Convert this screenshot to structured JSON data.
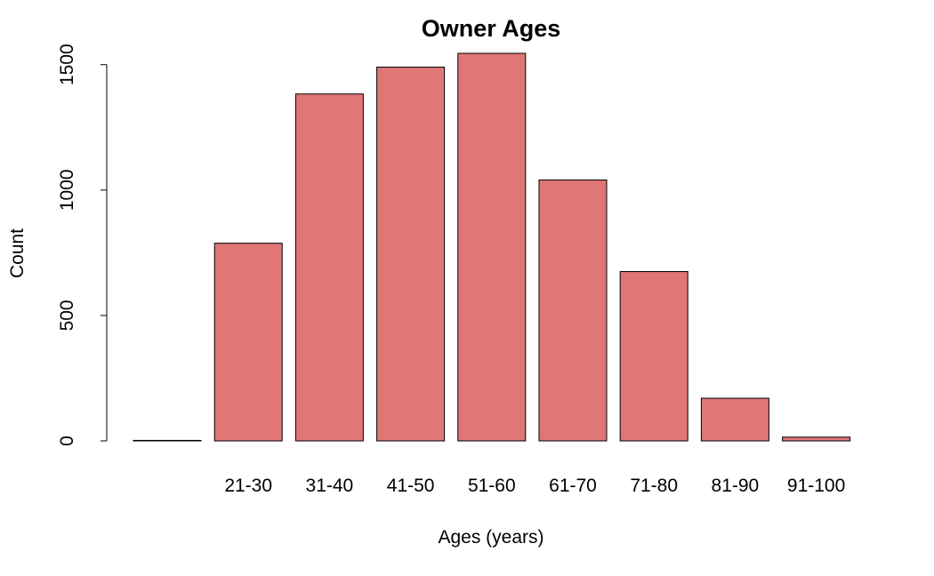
{
  "chart_data": {
    "type": "bar",
    "title": "Owner Ages",
    "xlabel": "Ages (years)",
    "ylabel": "Count",
    "categories": [
      "",
      "21-30",
      "31-40",
      "41-50",
      "51-60",
      "61-70",
      "71-80",
      "81-90",
      "91-100"
    ],
    "values": [
      2,
      788,
      1383,
      1490,
      1545,
      1040,
      675,
      170,
      15
    ],
    "ylim": [
      0,
      1545
    ],
    "yticks": [
      0,
      500,
      1000,
      1500
    ],
    "grid": false,
    "bar_color": "#e07676",
    "bar_border": "#000000"
  }
}
